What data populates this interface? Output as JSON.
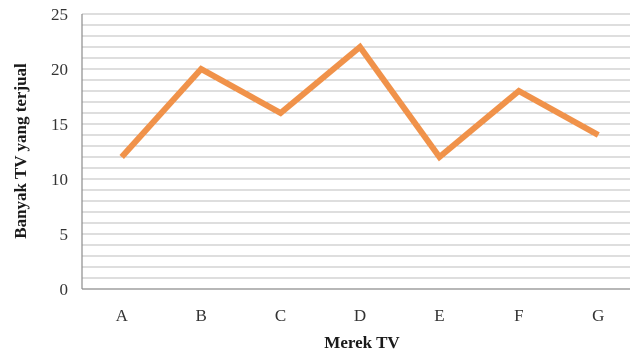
{
  "chart_data": {
    "type": "line",
    "title": "",
    "xlabel": "Merek TV",
    "ylabel": "Banyak TV yang terjual",
    "categories": [
      "A",
      "B",
      "C",
      "D",
      "E",
      "F",
      "G"
    ],
    "series": [
      {
        "values": [
          12,
          20,
          16,
          22,
          12,
          18,
          14
        ],
        "color": "#f0924a"
      }
    ],
    "ylim": [
      0,
      25
    ],
    "y_ticks": [
      "0",
      "5",
      "10",
      "15",
      "20",
      "25"
    ],
    "y_tick_values": [
      0,
      5,
      10,
      15,
      20,
      25
    ],
    "minor_grid_step": 1,
    "grid": true,
    "legend": "none",
    "grid_color": "#bdbdbd",
    "axis_color": "#8c8c8c"
  }
}
